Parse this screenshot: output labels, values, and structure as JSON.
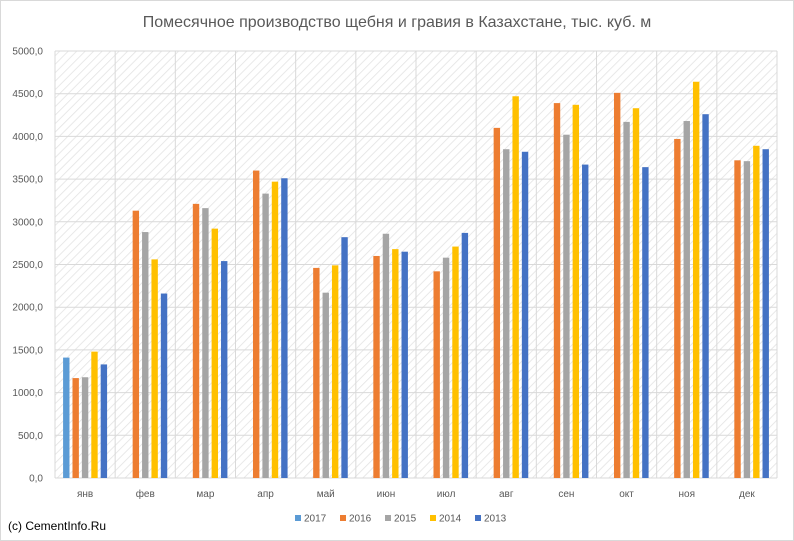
{
  "colors": {
    "2017": "#5b9bd5",
    "2016": "#ed7d31",
    "2015": "#a5a5a5",
    "2014": "#ffc000",
    "2013": "#4472c4",
    "grid": "#d9d9d9",
    "hatch": "#e3e3e3"
  },
  "credit": "(c) CementInfo.Ru",
  "chart_data": {
    "type": "bar",
    "title": "Помесячное производство щебня и гравия в Казахстане, тыс. куб. м",
    "xlabel": "",
    "ylabel": "",
    "ylim": [
      0,
      5000
    ],
    "y_ticks": [
      "0,0",
      "500,0",
      "1000,0",
      "1500,0",
      "2000,0",
      "2500,0",
      "3000,0",
      "3500,0",
      "4000,0",
      "4500,0",
      "5000,0"
    ],
    "grid": true,
    "legend_position": "bottom",
    "categories": [
      "янв",
      "фев",
      "мар",
      "апр",
      "май",
      "июн",
      "июл",
      "авг",
      "сен",
      "окт",
      "ноя",
      "дек"
    ],
    "series": [
      {
        "name": "2017",
        "color_key": "2017",
        "values": [
          1410,
          null,
          null,
          null,
          null,
          null,
          null,
          null,
          null,
          null,
          null,
          null
        ]
      },
      {
        "name": "2016",
        "color_key": "2016",
        "values": [
          1170,
          3130,
          3210,
          3600,
          2460,
          2600,
          2420,
          4100,
          4390,
          4510,
          3970,
          3720
        ]
      },
      {
        "name": "2015",
        "color_key": "2015",
        "values": [
          1180,
          2880,
          3160,
          3330,
          2170,
          2860,
          2580,
          3850,
          4020,
          4170,
          4180,
          3710
        ]
      },
      {
        "name": "2014",
        "color_key": "2014",
        "values": [
          1480,
          2560,
          2920,
          3470,
          2490,
          2680,
          2710,
          4470,
          4370,
          4330,
          4640,
          3890
        ]
      },
      {
        "name": "2013",
        "color_key": "2013",
        "values": [
          1330,
          2160,
          2540,
          3510,
          2820,
          2650,
          2870,
          3820,
          3670,
          3640,
          4260,
          3850
        ]
      }
    ]
  }
}
